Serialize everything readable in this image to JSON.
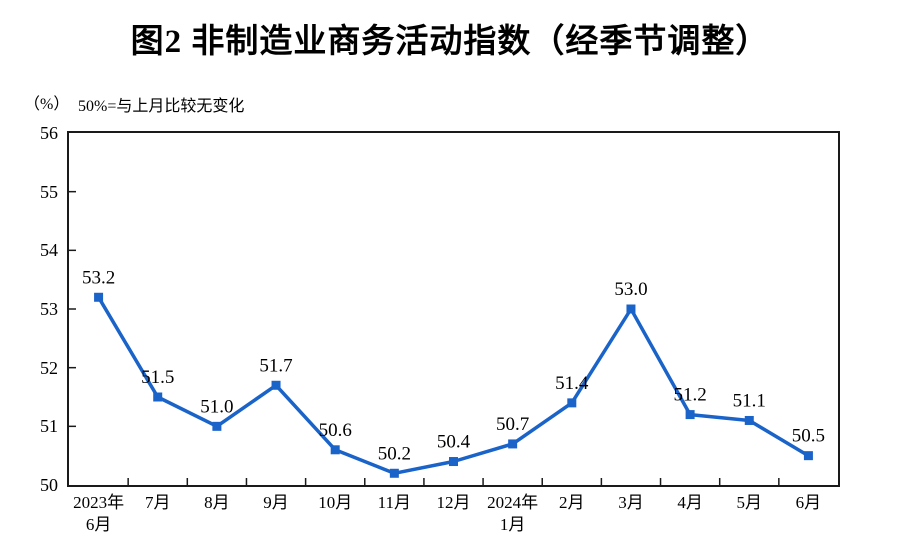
{
  "page": {
    "title": "图2 非制造业商务活动指数（经季节调整）",
    "unit_label": "（%）",
    "baseline_note": "50%=与上月比较无变化"
  },
  "colors": {
    "line": "#1a63c9",
    "marker": "#1a63c9",
    "axis": "#1a1a1a",
    "label_text": "#000000"
  },
  "chart_data": {
    "type": "line",
    "title": "图2 非制造业商务活动指数（经季节调整）",
    "subtitle": "50%=与上月比较无变化",
    "unit": "%",
    "categories": [
      "2023年\n6月",
      "7月",
      "8月",
      "9月",
      "10月",
      "11月",
      "12月",
      "2024年\n1月",
      "2月",
      "3月",
      "4月",
      "5月",
      "6月"
    ],
    "values": [
      53.2,
      51.5,
      51.0,
      51.7,
      50.6,
      50.2,
      50.4,
      50.7,
      51.4,
      53.0,
      51.2,
      51.1,
      50.5
    ],
    "series_name": "非制造业商务活动指数",
    "ylim": [
      50,
      56
    ],
    "yticks": [
      50,
      51,
      52,
      53,
      54,
      55,
      56
    ],
    "ylabel": "",
    "xlabel": "",
    "grid": false,
    "legend_position": "none",
    "marker": "square",
    "data_labels": true,
    "value_decimals": 1
  }
}
